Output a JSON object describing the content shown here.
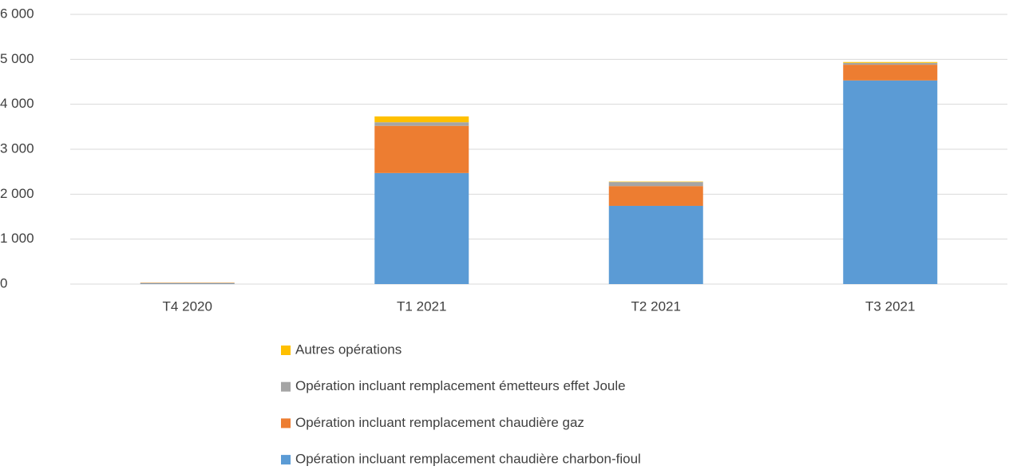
{
  "chart_data": {
    "type": "stacked_bar",
    "categories": [
      "T4 2020",
      "T1 2021",
      "T2 2021",
      "T3 2021"
    ],
    "series": [
      {
        "name": "Opération incluant remplacement chaudière charbon-fioul",
        "color": "#5b9bd5",
        "values": [
          15,
          2470,
          1740,
          4530
        ]
      },
      {
        "name": "Opération incluant remplacement chaudière gaz",
        "color": "#ed7d31",
        "values": [
          10,
          1050,
          440,
          350
        ]
      },
      {
        "name": "Opération incluant remplacement émetteurs effet Joule",
        "color": "#a5a5a5",
        "values": [
          5,
          80,
          90,
          40
        ]
      },
      {
        "name": "Autres opérations",
        "color": "#ffc000",
        "values": [
          3,
          130,
          10,
          20
        ]
      }
    ],
    "ylim": [
      0,
      6000
    ],
    "yticks": [
      0,
      {
        "value": 1000,
        "label": "1 000"
      },
      {
        "value": 2000,
        "label": "2 000"
      },
      {
        "value": 3000,
        "label": "3 000"
      },
      {
        "value": 4000,
        "label": "4 000"
      },
      {
        "value": 5000,
        "label": "5 000"
      },
      {
        "value": 6000,
        "label": "6 000"
      }
    ],
    "grid": true,
    "legend": "bottom"
  }
}
